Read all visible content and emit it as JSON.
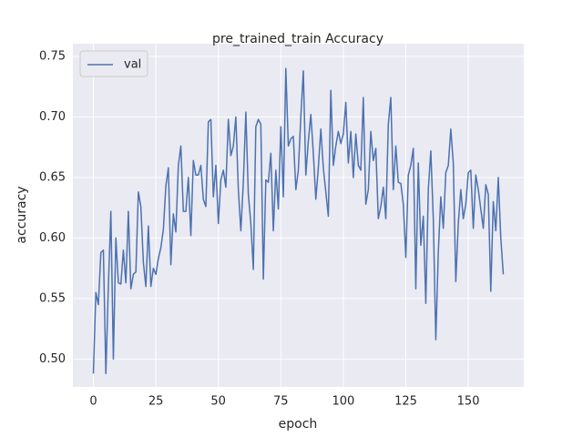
{
  "chart_data": {
    "type": "line",
    "title": "pre_trained_train Accuracy",
    "xlabel": "epoch",
    "ylabel": "accuracy",
    "x": [
      0,
      1,
      2,
      3,
      4,
      5,
      6,
      7,
      8,
      9,
      10,
      11,
      12,
      13,
      14,
      15,
      16,
      17,
      18,
      19,
      20,
      21,
      22,
      23,
      24,
      25,
      26,
      27,
      28,
      29,
      30,
      31,
      32,
      33,
      34,
      35,
      36,
      37,
      38,
      39,
      40,
      41,
      42,
      43,
      44,
      45,
      46,
      47,
      48,
      49,
      50,
      51,
      52,
      53,
      54,
      55,
      56,
      57,
      58,
      59,
      60,
      61,
      62,
      63,
      64,
      65,
      66,
      67,
      68,
      69,
      70,
      71,
      72,
      73,
      74,
      75,
      76,
      77,
      78,
      79,
      80,
      81,
      82,
      83,
      84,
      85,
      86,
      87,
      88,
      89,
      90,
      91,
      92,
      93,
      94,
      95,
      96,
      97,
      98,
      99,
      100,
      101,
      102,
      103,
      104,
      105,
      106,
      107,
      108,
      109,
      110,
      111,
      112,
      113,
      114,
      115,
      116,
      117,
      118,
      119,
      120,
      121,
      122,
      123,
      124,
      125,
      126,
      127,
      128,
      129,
      130,
      131,
      132,
      133,
      134,
      135,
      136,
      137,
      138,
      139,
      140,
      141,
      142,
      143,
      144,
      145,
      146,
      147,
      148,
      149,
      150,
      151,
      152,
      153,
      154,
      155,
      156,
      157,
      158,
      159,
      160,
      161,
      162,
      163,
      164
    ],
    "series": [
      {
        "name": "val",
        "color": "#4c72b0",
        "values": [
          0.488,
          0.555,
          0.545,
          0.588,
          0.59,
          0.488,
          0.56,
          0.622,
          0.5,
          0.6,
          0.563,
          0.562,
          0.59,
          0.563,
          0.622,
          0.558,
          0.57,
          0.572,
          0.638,
          0.626,
          0.58,
          0.56,
          0.61,
          0.56,
          0.575,
          0.57,
          0.583,
          0.592,
          0.607,
          0.643,
          0.658,
          0.578,
          0.62,
          0.605,
          0.66,
          0.676,
          0.622,
          0.622,
          0.65,
          0.602,
          0.664,
          0.652,
          0.652,
          0.66,
          0.632,
          0.626,
          0.696,
          0.698,
          0.634,
          0.66,
          0.612,
          0.648,
          0.656,
          0.642,
          0.698,
          0.668,
          0.676,
          0.7,
          0.64,
          0.606,
          0.646,
          0.704,
          0.636,
          0.612,
          0.574,
          0.692,
          0.698,
          0.694,
          0.566,
          0.648,
          0.646,
          0.67,
          0.606,
          0.656,
          0.624,
          0.692,
          0.634,
          0.74,
          0.676,
          0.682,
          0.684,
          0.64,
          0.656,
          0.7,
          0.738,
          0.652,
          0.68,
          0.702,
          0.67,
          0.632,
          0.658,
          0.69,
          0.658,
          0.638,
          0.618,
          0.722,
          0.66,
          0.676,
          0.688,
          0.678,
          0.686,
          0.712,
          0.662,
          0.688,
          0.65,
          0.686,
          0.66,
          0.656,
          0.716,
          0.628,
          0.64,
          0.688,
          0.664,
          0.674,
          0.616,
          0.626,
          0.642,
          0.616,
          0.694,
          0.716,
          0.64,
          0.676,
          0.646,
          0.645,
          0.628,
          0.584,
          0.652,
          0.66,
          0.674,
          0.558,
          0.662,
          0.594,
          0.618,
          0.546,
          0.64,
          0.672,
          0.616,
          0.516,
          0.588,
          0.634,
          0.608,
          0.654,
          0.66,
          0.69,
          0.662,
          0.564,
          0.612,
          0.64,
          0.616,
          0.628,
          0.654,
          0.656,
          0.608,
          0.652,
          0.64,
          0.624,
          0.608,
          0.644,
          0.636,
          0.556,
          0.63,
          0.606,
          0.65,
          0.6,
          0.57
        ]
      }
    ],
    "xlim": [
      -8.2,
      172.2
    ],
    "xticks": [
      0,
      25,
      50,
      75,
      100,
      125,
      150
    ],
    "ylim": [
      0.477,
      0.7605
    ],
    "yticks": [
      {
        "value": 0.5,
        "label": "0.50"
      },
      0.55,
      {
        "value": 0.6,
        "label": "0.60"
      },
      0.65,
      {
        "value": 0.7,
        "label": "0.70"
      },
      0.75
    ],
    "grid": true,
    "legend": "upper left"
  }
}
